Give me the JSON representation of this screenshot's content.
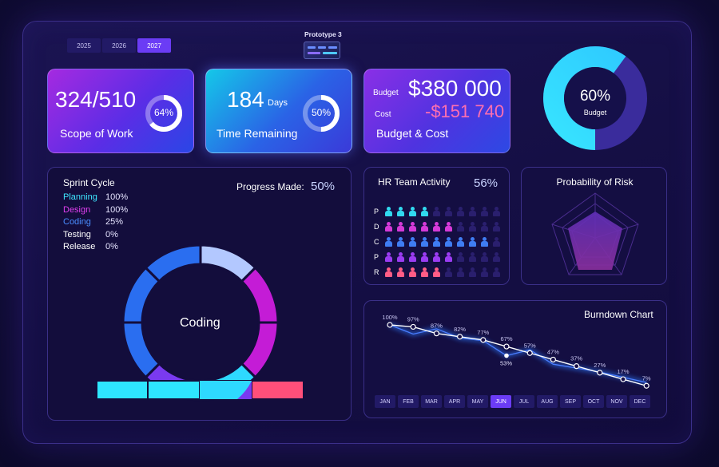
{
  "years": [
    "2025",
    "2026",
    "2027"
  ],
  "prototype_label": "Prototype 3",
  "kpis": {
    "scope": {
      "value": "324/510",
      "label": "Scope of Work",
      "pct": "64%",
      "fraction": 0.64
    },
    "time": {
      "value": "184",
      "unit": "Days",
      "label": "Time Remaining",
      "pct": "50%",
      "fraction": 0.5
    },
    "budget": {
      "budget_label": "Budget",
      "budget_value": "$380 000",
      "cost_label": "Cost",
      "cost_value": "-$151 740",
      "label": "Budget & Cost"
    }
  },
  "budget_donut": {
    "pct": "60%",
    "label": "Budget",
    "fraction": 0.6
  },
  "sprint": {
    "title": "Sprint Cycle",
    "progress_label": "Progress Made:",
    "progress_value": "50%",
    "center_label": "Coding",
    "phases": [
      {
        "name": "Planning",
        "value": "100%",
        "color": "#3ee6ff"
      },
      {
        "name": "Design",
        "value": "100%",
        "color": "#e23ff0"
      },
      {
        "name": "Coding",
        "value": "25%",
        "color": "#4a8dff"
      },
      {
        "name": "Testing",
        "value": "0%",
        "color": "#ffffff"
      },
      {
        "name": "Release",
        "value": "0%",
        "color": "#ffffff"
      }
    ]
  },
  "hr": {
    "title": "HR Team Activity",
    "pct": "56%",
    "rows": [
      {
        "letter": "P",
        "filled": 4,
        "color": "#31d9ef"
      },
      {
        "letter": "D",
        "filled": 6,
        "color": "#d53ad8"
      },
      {
        "letter": "C",
        "filled": 9,
        "color": "#3f7df3"
      },
      {
        "letter": "P",
        "filled": 6,
        "color": "#9b3cf2"
      },
      {
        "letter": "R",
        "filled": 5,
        "color": "#ff5d86"
      }
    ],
    "total": 10
  },
  "risk": {
    "title": "Probability of Risk"
  },
  "burndown": {
    "title": "Burndown Chart",
    "months": [
      "JAN",
      "FEB",
      "MAR",
      "APR",
      "MAY",
      "JUN",
      "JUL",
      "AUG",
      "SEP",
      "OCT",
      "NOV",
      "DEC"
    ],
    "active_month": "JUN"
  },
  "chart_data": {
    "type": "line",
    "title": "Burndown Chart",
    "categories": [
      "JAN",
      "FEB",
      "MAR",
      "APR",
      "MAY",
      "JUN",
      "JUL",
      "AUG",
      "SEP",
      "OCT",
      "NOV",
      "DEC"
    ],
    "series": [
      {
        "values": [
          100,
          97,
          87,
          82,
          77,
          67,
          57,
          47,
          37,
          27,
          17,
          7
        ],
        "labels": [
          "100%",
          "97%",
          "87%",
          "82%",
          "77%",
          "67%",
          "57%",
          "47%",
          "37%",
          "27%",
          "17%",
          "7%"
        ],
        "color": "#ffffff"
      },
      {
        "values": [
          100,
          86,
          94,
          80,
          76,
          53,
          62,
          40,
          34,
          28,
          20,
          12
        ],
        "color": "#4a7dff",
        "highlight": {
          "index": 5,
          "label": "53%"
        }
      }
    ],
    "ylim": [
      0,
      100
    ]
  }
}
